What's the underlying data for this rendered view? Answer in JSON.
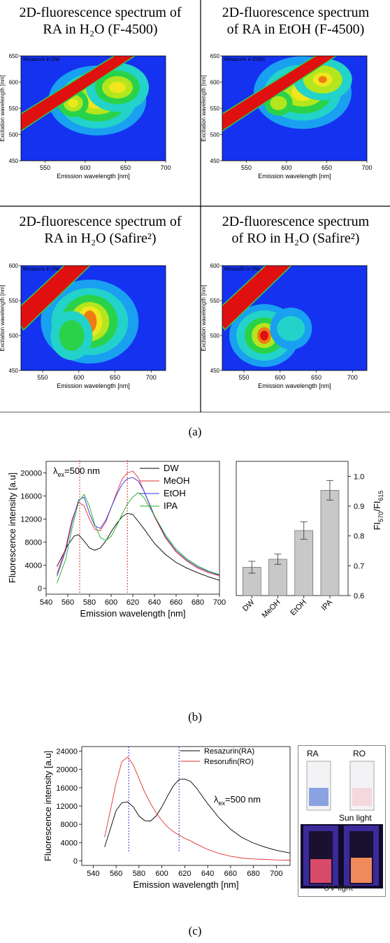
{
  "grid": {
    "headers": [
      [
        "2D-fluorescence spectrum of",
        "RA in H₂O (F-4500)"
      ],
      [
        "2D-fluorescence spectrum",
        "of RA in EtOH (F-4500)"
      ],
      [
        "2D-fluorescence spectrum of",
        "RA  in H₂O (Safire²)"
      ],
      [
        "2D-fluorescence spectrum",
        "of RO in H₂O (Safire²)"
      ]
    ],
    "caption": "(a)"
  },
  "chart_data": [
    {
      "type": "heatmap",
      "title": "Resazurin in DW",
      "xlabel": "Emission wavelength [nm]",
      "ylabel": "Excitation wavelength [nm]",
      "xlim": [
        520,
        700
      ],
      "ylim": [
        450,
        650
      ],
      "xticks": [
        "550",
        "600",
        "650",
        "700"
      ],
      "yticks": [
        "450",
        "500",
        "550",
        "600",
        "650"
      ]
    },
    {
      "type": "heatmap",
      "title": "Resazurin in EtOH",
      "xlabel": "Emission wavelength [nm]",
      "ylabel": "Excitation wavelength [nm]",
      "xlim": [
        520,
        700
      ],
      "ylim": [
        450,
        650
      ],
      "xticks": [
        "550",
        "600",
        "650",
        "700"
      ],
      "yticks": [
        "450",
        "500",
        "550",
        "600",
        "650"
      ]
    },
    {
      "type": "heatmap",
      "title": "Resazurin in DW",
      "xlabel": "Emission wavelength [nm]",
      "ylabel": "Excitation wavelength [nm]",
      "xlim": [
        520,
        720
      ],
      "ylim": [
        450,
        600
      ],
      "xticks": [
        "550",
        "600",
        "650",
        "700"
      ],
      "yticks": [
        "450",
        "500",
        "550",
        "600"
      ]
    },
    {
      "type": "heatmap",
      "title": "Resorufin in DW",
      "xlabel": "Emission wavelength [nm]",
      "ylabel": "Excitation wavelength [nm]",
      "xlim": [
        520,
        720
      ],
      "ylim": [
        450,
        600
      ],
      "xticks": [
        "550",
        "600",
        "650",
        "700"
      ],
      "yticks": [
        "450",
        "500",
        "550",
        "600"
      ]
    },
    {
      "type": "line",
      "annotation": "λ",
      "annotation_sub": "ex",
      "annotation_rest": "=500 nm",
      "xlabel": "Emission wavelength [nm]",
      "ylabel": "Fluorescence intensity [a.u]",
      "xlim": [
        540,
        700
      ],
      "ylim": [
        -1000,
        22000
      ],
      "xticks": [
        540,
        560,
        580,
        600,
        620,
        640,
        660,
        680,
        700
      ],
      "yticks": [
        0,
        4000,
        8000,
        12000,
        16000,
        20000
      ],
      "legend_position": "top-right",
      "vlines": [
        571,
        615
      ],
      "series": [
        {
          "name": "DW",
          "color": "#000000",
          "points": [
            [
              550,
              3800
            ],
            [
              560,
              7500
            ],
            [
              566,
              9100
            ],
            [
              570,
              9300
            ],
            [
              575,
              8200
            ],
            [
              580,
              7000
            ],
            [
              585,
              6600
            ],
            [
              590,
              7000
            ],
            [
              595,
              8200
            ],
            [
              600,
              9800
            ],
            [
              605,
              11200
            ],
            [
              610,
              12400
            ],
            [
              615,
              13000
            ],
            [
              620,
              12800
            ],
            [
              625,
              11600
            ],
            [
              630,
              10400
            ],
            [
              640,
              7800
            ],
            [
              650,
              5900
            ],
            [
              660,
              4500
            ],
            [
              670,
              3500
            ],
            [
              680,
              2700
            ],
            [
              690,
              2000
            ],
            [
              700,
              1400
            ]
          ]
        },
        {
          "name": "MeOH",
          "color": "#e03030",
          "points": [
            [
              550,
              2500
            ],
            [
              558,
              7000
            ],
            [
              564,
              12000
            ],
            [
              570,
              14900
            ],
            [
              575,
              14300
            ],
            [
              580,
              12000
            ],
            [
              585,
              10200
            ],
            [
              590,
              10000
            ],
            [
              595,
              11500
            ],
            [
              600,
              14000
            ],
            [
              605,
              16500
            ],
            [
              610,
              18900
            ],
            [
              615,
              20000
            ],
            [
              620,
              20300
            ],
            [
              625,
              19200
            ],
            [
              630,
              17000
            ],
            [
              640,
              12400
            ],
            [
              650,
              8800
            ],
            [
              660,
              6300
            ],
            [
              670,
              4700
            ],
            [
              680,
              3500
            ],
            [
              690,
              2700
            ],
            [
              700,
              2200
            ]
          ]
        },
        {
          "name": "EtOH",
          "color": "#3030e0",
          "points": [
            [
              550,
              2100
            ],
            [
              558,
              6500
            ],
            [
              564,
              11500
            ],
            [
              570,
              15300
            ],
            [
              575,
              15800
            ],
            [
              580,
              13000
            ],
            [
              585,
              10800
            ],
            [
              590,
              10400
            ],
            [
              595,
              11800
            ],
            [
              600,
              14000
            ],
            [
              605,
              16200
            ],
            [
              610,
              18000
            ],
            [
              615,
              19000
            ],
            [
              620,
              19200
            ],
            [
              625,
              18600
            ],
            [
              630,
              17000
            ],
            [
              640,
              12600
            ],
            [
              650,
              9000
            ],
            [
              660,
              6500
            ],
            [
              670,
              4900
            ],
            [
              680,
              3700
            ],
            [
              690,
              2900
            ],
            [
              700,
              2300
            ]
          ]
        },
        {
          "name": "IPA",
          "color": "#20b020",
          "points": [
            [
              550,
              900
            ],
            [
              558,
              5000
            ],
            [
              564,
              10500
            ],
            [
              570,
              15000
            ],
            [
              575,
              16300
            ],
            [
              580,
              14200
            ],
            [
              585,
              11000
            ],
            [
              590,
              8800
            ],
            [
              595,
              8300
            ],
            [
              600,
              9000
            ],
            [
              605,
              10800
            ],
            [
              610,
              12800
            ],
            [
              615,
              14600
            ],
            [
              620,
              15800
            ],
            [
              625,
              16600
            ],
            [
              630,
              15800
            ],
            [
              640,
              12600
            ],
            [
              650,
              9300
            ],
            [
              660,
              6800
            ],
            [
              670,
              5100
            ],
            [
              680,
              3900
            ],
            [
              690,
              3000
            ],
            [
              700,
              2400
            ]
          ]
        }
      ]
    },
    {
      "type": "bar",
      "categories": [
        "DW",
        "MeOH",
        "EtOH",
        "IPA"
      ],
      "values": [
        0.695,
        0.722,
        0.818,
        0.953
      ],
      "errors": [
        0.02,
        0.017,
        0.029,
        0.033
      ],
      "ylabel": "FI",
      "ylabel_sub1": "570",
      "ylabel_mid": "/FI",
      "ylabel_sub2": "615",
      "ylim": [
        0.6,
        1.05
      ],
      "yticks": [
        "0.6",
        "0.7",
        "0.8",
        "0.9",
        "1.0"
      ]
    },
    {
      "type": "line",
      "annotation": "λ",
      "annotation_sub": "ex",
      "annotation_rest": "=500 nm",
      "xlabel": "Emission wavelength [nm]",
      "ylabel": "Fluorescence intensity [a.u]",
      "xlim": [
        530,
        712
      ],
      "ylim": [
        -1000,
        25000
      ],
      "xticks": [
        540,
        560,
        580,
        600,
        620,
        640,
        660,
        680,
        700
      ],
      "yticks": [
        0,
        4000,
        8000,
        12000,
        16000,
        20000,
        24000
      ],
      "legend_position": "top-right",
      "vlines_red_blue": [
        571,
        615
      ],
      "series": [
        {
          "name": "Resazurin(RA)",
          "color": "#000000",
          "points": [
            [
              550,
              3000
            ],
            [
              555,
              7000
            ],
            [
              560,
              11000
            ],
            [
              565,
              12700
            ],
            [
              570,
              12900
            ],
            [
              575,
              11800
            ],
            [
              580,
              9800
            ],
            [
              585,
              8800
            ],
            [
              590,
              8700
            ],
            [
              595,
              9800
            ],
            [
              600,
              11800
            ],
            [
              605,
              14200
            ],
            [
              610,
              16400
            ],
            [
              615,
              17800
            ],
            [
              620,
              17900
            ],
            [
              625,
              17400
            ],
            [
              630,
              16000
            ],
            [
              640,
              12500
            ],
            [
              650,
              9400
            ],
            [
              660,
              6900
            ],
            [
              670,
              5100
            ],
            [
              680,
              3900
            ],
            [
              690,
              3000
            ],
            [
              700,
              2300
            ],
            [
              712,
              1700
            ]
          ]
        },
        {
          "name": "Resorufin(RO)",
          "color": "#e03030",
          "points": [
            [
              550,
              5200
            ],
            [
              555,
              11000
            ],
            [
              560,
              17000
            ],
            [
              565,
              21700
            ],
            [
              570,
              22700
            ],
            [
              575,
              21000
            ],
            [
              580,
              18000
            ],
            [
              585,
              15000
            ],
            [
              590,
              12600
            ],
            [
              595,
              10500
            ],
            [
              600,
              8800
            ],
            [
              605,
              7400
            ],
            [
              610,
              6400
            ],
            [
              615,
              5600
            ],
            [
              620,
              4900
            ],
            [
              625,
              4400
            ],
            [
              630,
              3700
            ],
            [
              640,
              2500
            ],
            [
              650,
              1600
            ],
            [
              660,
              1000
            ],
            [
              670,
              600
            ],
            [
              680,
              400
            ],
            [
              690,
              300
            ],
            [
              700,
              200
            ],
            [
              712,
              150
            ]
          ]
        }
      ]
    }
  ],
  "panel_b_caption": "(b)",
  "panel_c_caption": "(c)",
  "photo": {
    "label_ra": "RA",
    "label_ro": "RO",
    "sun": "Sun light",
    "uv": "UV light"
  }
}
